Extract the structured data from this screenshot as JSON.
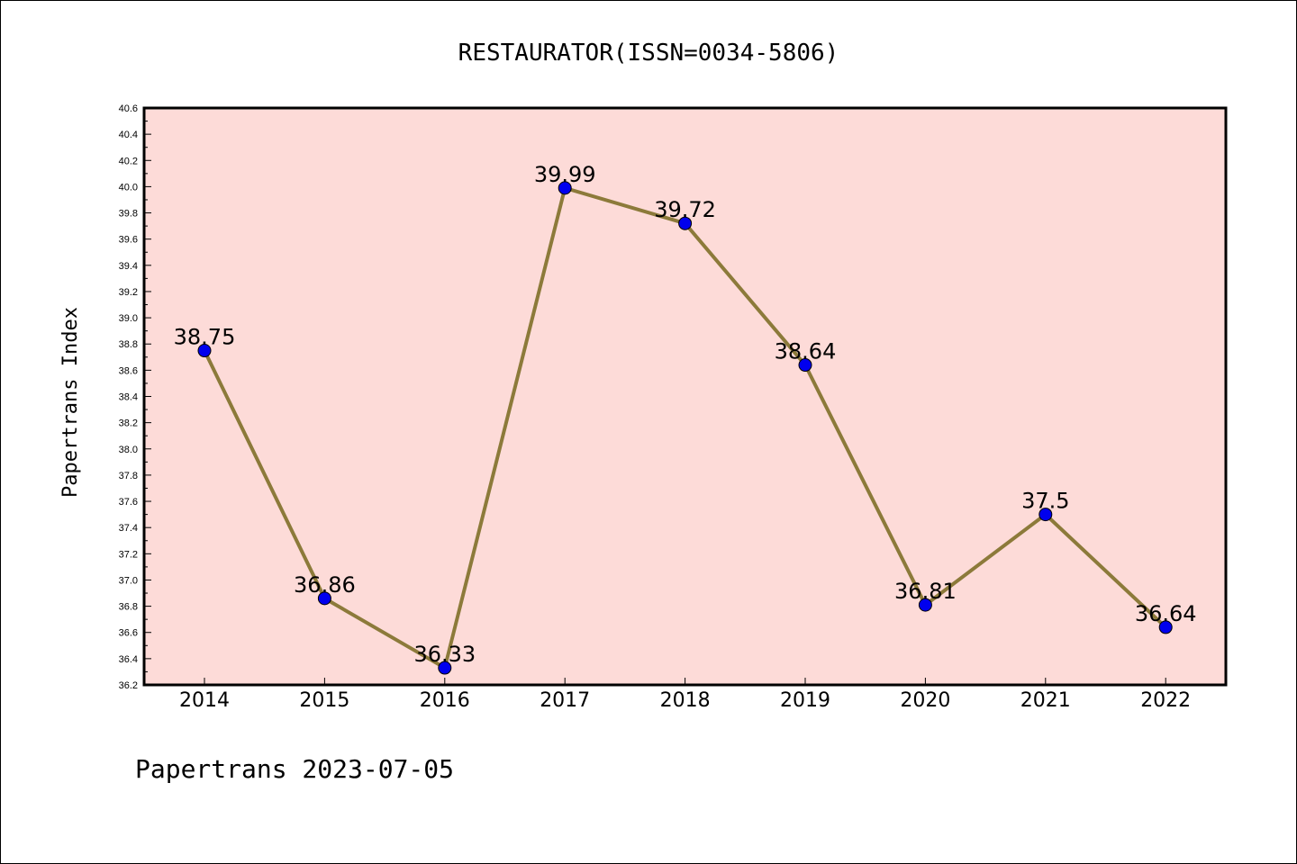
{
  "chart_data": {
    "type": "line",
    "title": "RESTAURATOR(ISSN=0034-5806)",
    "ylabel": "Papertrans Index",
    "xlabel": "",
    "x": [
      "2014",
      "2015",
      "2016",
      "2017",
      "2018",
      "2019",
      "2020",
      "2021",
      "2022"
    ],
    "series": [
      {
        "values": [
          38.75,
          36.86,
          36.33,
          39.99,
          39.72,
          38.64,
          36.81,
          37.5,
          36.64
        ],
        "labels": [
          "38.75",
          "36.86",
          "36.33",
          "39.99",
          "39.72",
          "38.64",
          "36.81",
          "37.5",
          "36.64"
        ],
        "line_color": "#8c7a3a",
        "marker_color": "#0000ee"
      }
    ],
    "ylim": [
      36.2,
      40.6
    ],
    "yticks": [
      "36.2",
      "36.4",
      "36.6",
      "36.8",
      "37.0",
      "37.2",
      "37.4",
      "37.6",
      "37.8",
      "38.0",
      "38.2",
      "38.4",
      "38.6",
      "38.8",
      "39.0",
      "39.2",
      "39.4",
      "39.6",
      "39.8",
      "40.0",
      "40.2",
      "40.4",
      "40.6"
    ],
    "plot_background": "#fddbd8",
    "grid": false
  },
  "footer": "Papertrans 2023-07-05"
}
